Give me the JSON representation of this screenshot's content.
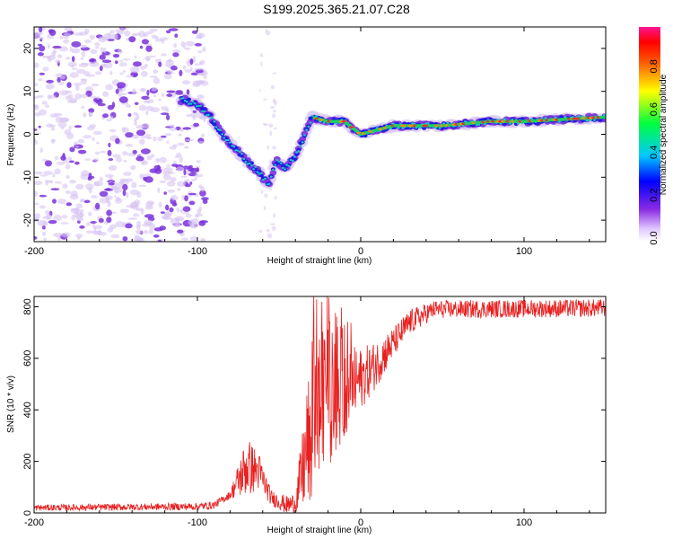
{
  "title": "S199.2025.365.21.07.C28",
  "colors": {
    "snr_line": "#e82020",
    "spec_fill": "#d7c4f2",
    "spec_fill_dark": "#7a32dc",
    "spec_core": "#1d1de0",
    "spec_mid": "#1fc8c8",
    "spec_high": "#1ed060",
    "spec_peak": "#f03030",
    "spec_hot": "#ff8c1a"
  },
  "chart_data": [
    {
      "type": "heatmap",
      "name": "spectrogram",
      "xlabel": "Height of straight line (km)",
      "ylabel": "Frequency (Hz)",
      "xlim": [
        -200,
        150
      ],
      "ylim": [
        -25,
        25
      ],
      "xticks": [
        -200,
        -100,
        0,
        100
      ],
      "xtick_labels": [
        "-200",
        "-100",
        "0",
        "100"
      ],
      "yticks": [
        -20,
        -10,
        0,
        10,
        20
      ],
      "ytick_labels": [
        "-20",
        "-10",
        "0",
        "10",
        "20"
      ],
      "ridge": [
        {
          "x": -108,
          "f": 8
        },
        {
          "x": -100,
          "f": 7
        },
        {
          "x": -92,
          "f": 4
        },
        {
          "x": -85,
          "f": 0
        },
        {
          "x": -78,
          "f": -3
        },
        {
          "x": -70,
          "f": -6
        },
        {
          "x": -62,
          "f": -9
        },
        {
          "x": -56,
          "f": -12
        },
        {
          "x": -52,
          "f": -6
        },
        {
          "x": -46,
          "f": -8
        },
        {
          "x": -40,
          "f": -5
        },
        {
          "x": -34,
          "f": 0
        },
        {
          "x": -30,
          "f": 4
        },
        {
          "x": -20,
          "f": 3
        },
        {
          "x": -10,
          "f": 3
        },
        {
          "x": 0,
          "f": 0
        },
        {
          "x": 20,
          "f": 2
        },
        {
          "x": 50,
          "f": 2
        },
        {
          "x": 80,
          "f": 3
        },
        {
          "x": 100,
          "f": 3
        },
        {
          "x": 150,
          "f": 4
        }
      ]
    },
    {
      "type": "line",
      "name": "snr",
      "xlabel": "Height of straight line (km)",
      "ylabel": "SNR (10 * v/v)",
      "xlim": [
        -200,
        150
      ],
      "ylim": [
        0,
        840
      ],
      "xticks": [
        -200,
        -100,
        0,
        100
      ],
      "xtick_labels": [
        "-200",
        "-100",
        "0",
        "100"
      ],
      "yticks": [
        0,
        200,
        400,
        600,
        800
      ],
      "ytick_labels": [
        "0",
        "200",
        "400",
        "600",
        "800"
      ],
      "envelope": [
        {
          "x": -200,
          "y": 20
        },
        {
          "x": -100,
          "y": 25
        },
        {
          "x": -90,
          "y": 30
        },
        {
          "x": -80,
          "y": 70
        },
        {
          "x": -70,
          "y": 180
        },
        {
          "x": -62,
          "y": 160
        },
        {
          "x": -55,
          "y": 60
        },
        {
          "x": -45,
          "y": 30
        },
        {
          "x": -40,
          "y": 40
        },
        {
          "x": -35,
          "y": 180
        },
        {
          "x": -28,
          "y": 420
        },
        {
          "x": -20,
          "y": 430
        },
        {
          "x": -10,
          "y": 470
        },
        {
          "x": 0,
          "y": 520
        },
        {
          "x": 10,
          "y": 580
        },
        {
          "x": 20,
          "y": 660
        },
        {
          "x": 30,
          "y": 740
        },
        {
          "x": 45,
          "y": 790
        },
        {
          "x": 150,
          "y": 795
        }
      ],
      "noise_amplitude": [
        {
          "x": -200,
          "a": 12
        },
        {
          "x": -80,
          "a": 15
        },
        {
          "x": -70,
          "a": 120
        },
        {
          "x": -55,
          "a": 30
        },
        {
          "x": -40,
          "a": 40
        },
        {
          "x": -30,
          "a": 320
        },
        {
          "x": -15,
          "a": 220
        },
        {
          "x": 0,
          "a": 120
        },
        {
          "x": 20,
          "a": 60
        },
        {
          "x": 45,
          "a": 35
        },
        {
          "x": 150,
          "a": 35
        }
      ]
    }
  ],
  "colorbar": {
    "label": "Normalized spectral amplitude",
    "range": [
      0.0,
      1.0
    ],
    "ticks": [
      0.0,
      0.2,
      0.4,
      0.6,
      0.8
    ],
    "tick_labels": [
      "0.0",
      "0.2",
      "0.4",
      "0.6",
      "0.8"
    ]
  }
}
